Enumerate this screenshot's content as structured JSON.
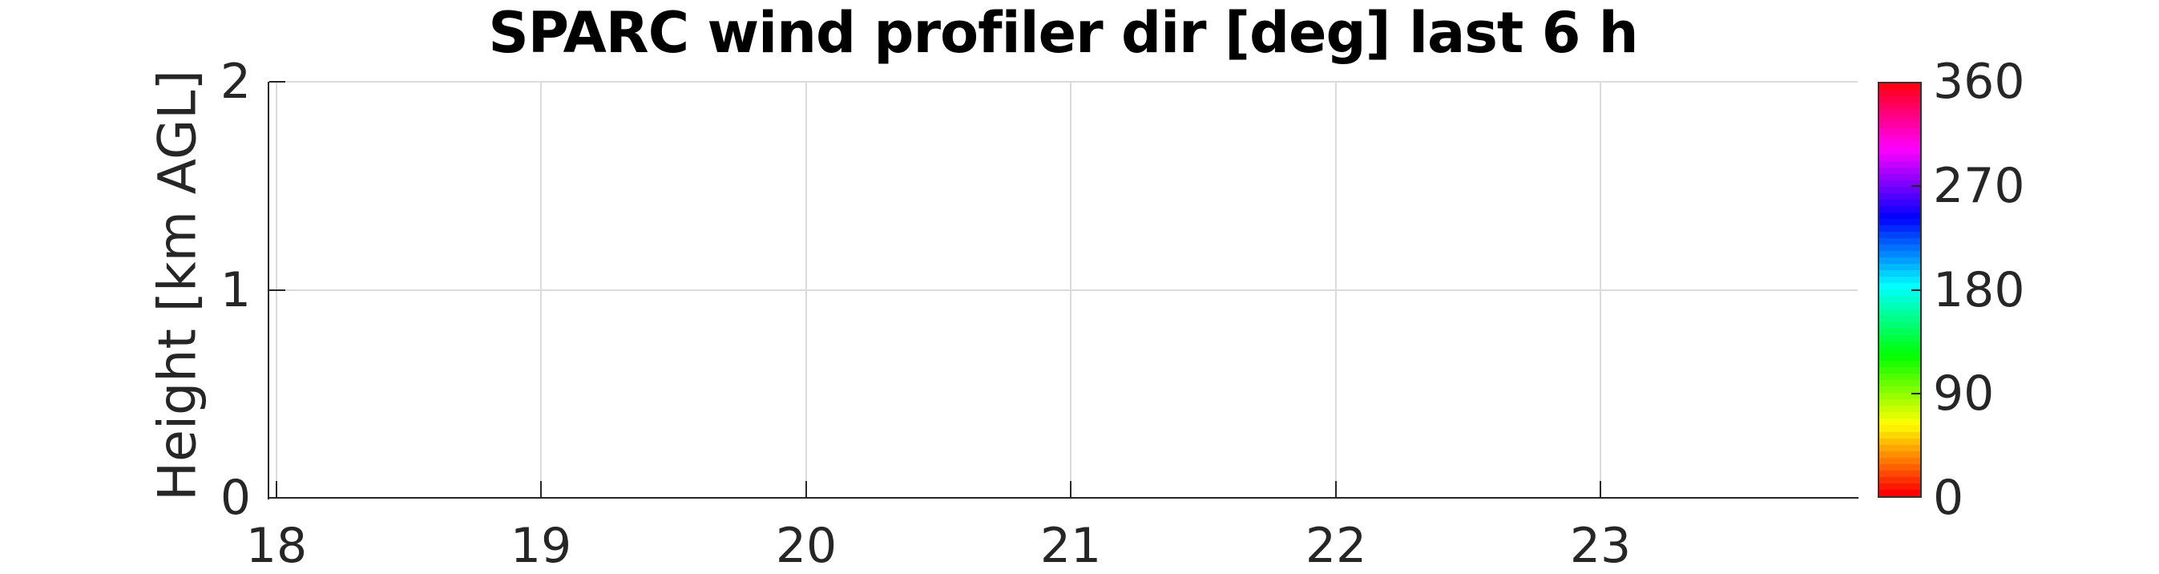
{
  "title": {
    "text": "SPARC wind profiler dir [deg] last 6 h"
  },
  "y_axis": {
    "label": "Height [km AGL]",
    "range": [
      0,
      2
    ],
    "ticks": [
      {
        "value": 0,
        "label": "0"
      },
      {
        "value": 1,
        "label": "1"
      },
      {
        "value": 2,
        "label": "2"
      }
    ]
  },
  "x_axis": {
    "range": [
      17.97,
      23.97
    ],
    "ticks": [
      {
        "value": 18,
        "label": "18"
      },
      {
        "value": 19,
        "label": "19"
      },
      {
        "value": 20,
        "label": "20"
      },
      {
        "value": 21,
        "label": "21"
      },
      {
        "value": 22,
        "label": "22"
      },
      {
        "value": 23,
        "label": "23"
      }
    ]
  },
  "colorbar": {
    "range": [
      0,
      360
    ],
    "ticks": [
      {
        "value": 0,
        "label": "0"
      },
      {
        "value": 90,
        "label": "90"
      },
      {
        "value": 180,
        "label": "180"
      },
      {
        "value": 270,
        "label": "270"
      },
      {
        "value": 360,
        "label": "360"
      }
    ],
    "colormap": {
      "name": "hsv",
      "steps": 64,
      "stops": [
        "#ff0000",
        "#ffff00",
        "#00ff00",
        "#00ffff",
        "#0000ff",
        "#ff00ff",
        "#ff0000"
      ]
    }
  },
  "colors": {
    "background": "#ffffff",
    "title": "#000000",
    "axis": "#262626",
    "grid": "#dbdbdb"
  },
  "chart_data": {
    "type": "heatmap",
    "title": "SPARC wind profiler dir [deg] last 6 h",
    "xlabel": "",
    "ylabel": "Height [km AGL]",
    "xlim": [
      17.97,
      23.97
    ],
    "ylim": [
      0,
      2
    ],
    "x_ticks": [
      18,
      19,
      20,
      21,
      22,
      23
    ],
    "y_ticks": [
      0,
      1,
      2
    ],
    "grid": true,
    "empty": true,
    "values": [],
    "colorbar": {
      "label_units": "deg",
      "range": [
        0,
        360
      ],
      "ticks": [
        0,
        90,
        180,
        270,
        360
      ],
      "colormap": "hsv",
      "position": "right"
    }
  }
}
